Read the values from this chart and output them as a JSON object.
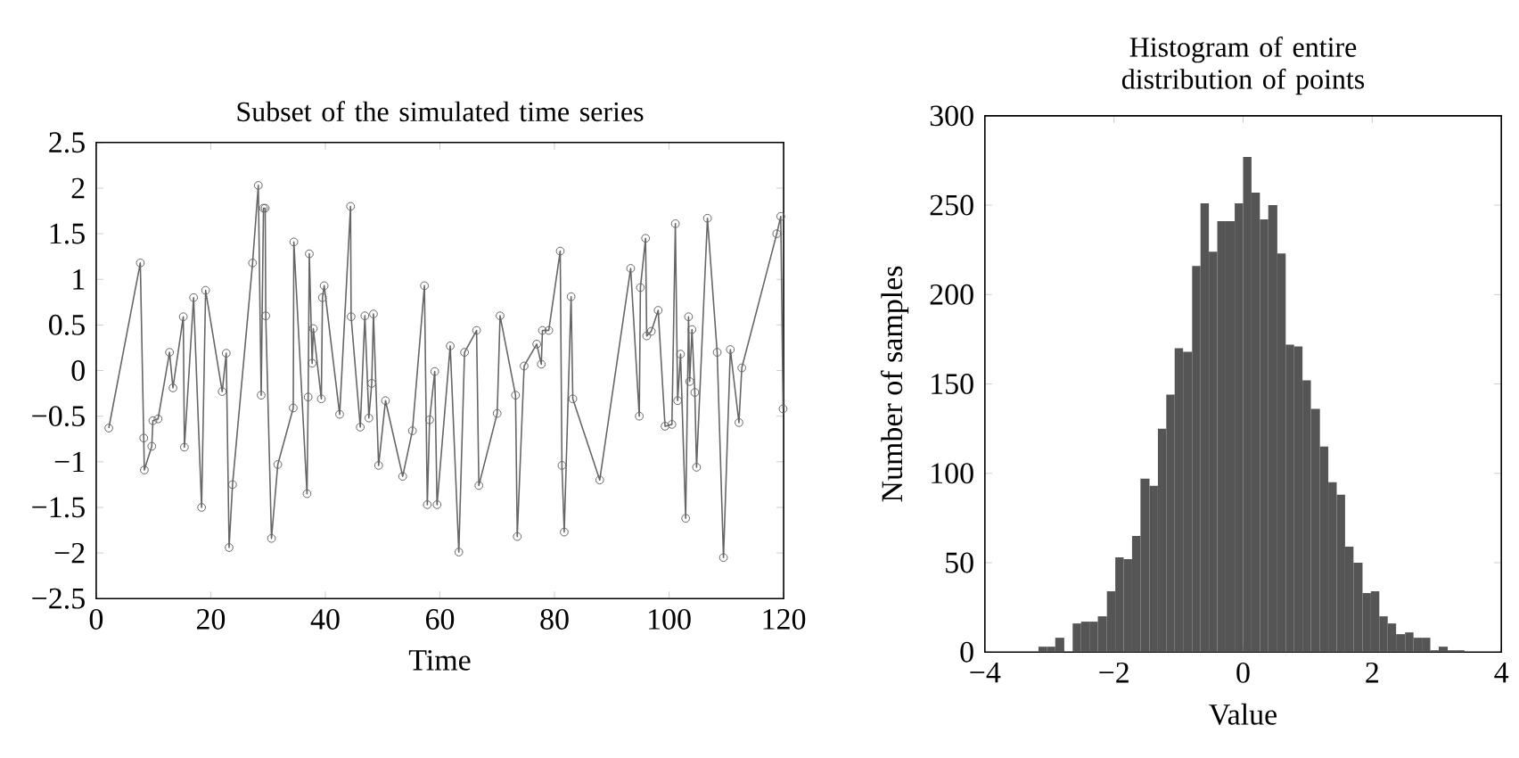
{
  "chart_data": [
    {
      "type": "line",
      "title": "Subset of the simulated time series",
      "xlabel": "Time",
      "color": "#666666",
      "marker": "circle",
      "line_style": "solid",
      "x": [
        2.2,
        7.7,
        8.3,
        8.4,
        9.7,
        9.9,
        10.8,
        12.8,
        13.4,
        15.2,
        15.4,
        17.0,
        18.4,
        19.1,
        22.0,
        22.7,
        23.2,
        23.8,
        27.3,
        28.3,
        28.8,
        29.2,
        29.5,
        29.6,
        30.6,
        31.7,
        34.4,
        34.5,
        36.8,
        37.0,
        37.2,
        37.7,
        37.9,
        39.3,
        39.5,
        39.8,
        42.5,
        44.4,
        44.5,
        46.1,
        46.9,
        47.6,
        48.1,
        48.4,
        49.3,
        50.5,
        53.5,
        55.2,
        57.3,
        57.8,
        58.2,
        59.1,
        59.5,
        61.8,
        63.3,
        64.3,
        66.4,
        66.8,
        70.0,
        70.5,
        73.2,
        73.5,
        74.7,
        76.9,
        77.7,
        77.9,
        79.0,
        81.0,
        81.3,
        81.7,
        82.9,
        83.2,
        87.9,
        93.3,
        94.8,
        95.0,
        95.9,
        96.1,
        96.9,
        98.1,
        99.3,
        100.5,
        101.1,
        101.5,
        102.0,
        102.9,
        103.4,
        103.6,
        104.0,
        104.5,
        104.8,
        106.7,
        108.4,
        109.5,
        110.7,
        112.2,
        112.7,
        118.8,
        119.5,
        119.9
      ],
      "values": [
        -0.63,
        1.18,
        -0.74,
        -1.09,
        -0.83,
        -0.55,
        -0.53,
        0.2,
        -0.19,
        0.59,
        -0.84,
        0.8,
        -1.5,
        0.88,
        -0.23,
        0.19,
        -1.94,
        -1.25,
        1.18,
        2.03,
        -0.27,
        1.78,
        1.78,
        0.6,
        -1.84,
        -1.03,
        -0.41,
        1.41,
        -1.35,
        -0.29,
        1.28,
        0.08,
        0.46,
        -0.31,
        0.8,
        0.93,
        -0.48,
        1.8,
        0.59,
        -0.62,
        0.6,
        -0.52,
        -0.14,
        0.62,
        -1.04,
        -0.33,
        -1.16,
        -0.66,
        0.93,
        -1.47,
        -0.54,
        -0.01,
        -1.47,
        0.27,
        -1.99,
        0.2,
        0.44,
        -1.26,
        -0.47,
        0.6,
        -0.27,
        -1.82,
        0.05,
        0.29,
        0.07,
        0.44,
        0.44,
        1.31,
        -1.04,
        -1.77,
        0.81,
        -0.31,
        -1.2,
        1.12,
        -0.5,
        0.91,
        1.45,
        0.38,
        0.43,
        0.66,
        -0.61,
        -0.59,
        1.61,
        -0.33,
        0.18,
        -1.62,
        0.59,
        -0.12,
        0.45,
        -0.24,
        -1.06,
        1.67,
        0.2,
        -2.05,
        0.23,
        -0.57,
        0.03,
        1.5,
        1.69,
        -0.42
      ],
      "xlim": [
        0,
        120
      ],
      "xticks": [
        0,
        20,
        40,
        60,
        80,
        100,
        120
      ],
      "ylim": [
        -2.5,
        2.5
      ],
      "yticks": [
        {
          "value": -2.5,
          "label": "−2.5"
        },
        {
          "value": -2,
          "label": "−2"
        },
        {
          "value": -1.5,
          "label": "−1.5"
        },
        {
          "value": -1,
          "label": "−1"
        },
        {
          "value": -0.5,
          "label": "−0.5"
        },
        0,
        0.5,
        1,
        1.5,
        2,
        2.5
      ]
    },
    {
      "type": "histogram",
      "title": "Histogram of entire distribution of points",
      "xlabel": "Value",
      "ylabel": "Number of samples",
      "color": "#555555",
      "bins": [
        -3.17,
        -3.04,
        -2.91,
        -2.77,
        -2.64,
        -2.51,
        -2.38,
        -2.25,
        -2.11,
        -1.98,
        -1.85,
        -1.72,
        -1.59,
        -1.45,
        -1.32,
        -1.19,
        -1.06,
        -0.93,
        -0.79,
        -0.66,
        -0.53,
        -0.4,
        -0.27,
        -0.13,
        0,
        0.13,
        0.26,
        0.39,
        0.53,
        0.66,
        0.79,
        0.92,
        1.05,
        1.19,
        1.32,
        1.45,
        1.58,
        1.71,
        1.85,
        1.98,
        2.11,
        2.24,
        2.37,
        2.51,
        2.64,
        2.77,
        2.9,
        3.03,
        3.17,
        3.3,
        3.43
      ],
      "values": [
        3,
        3,
        8,
        0,
        16,
        17,
        17,
        20,
        34,
        53,
        52,
        65,
        97,
        93,
        125,
        144,
        170,
        168,
        216,
        251,
        224,
        241,
        241,
        251,
        277,
        257,
        242,
        250,
        223,
        172,
        171,
        152,
        136,
        115,
        95,
        88,
        59,
        50,
        33,
        34,
        20,
        16,
        10,
        11,
        8,
        8,
        1,
        3,
        1,
        1
      ],
      "xlim": [
        -4,
        4
      ],
      "xticks": [
        {
          "value": -4,
          "label": "−4"
        },
        {
          "value": -2,
          "label": "−2"
        },
        0,
        2,
        4
      ],
      "ylim": [
        0,
        300
      ],
      "yticks": [
        0,
        50,
        100,
        150,
        200,
        250,
        300
      ]
    }
  ]
}
